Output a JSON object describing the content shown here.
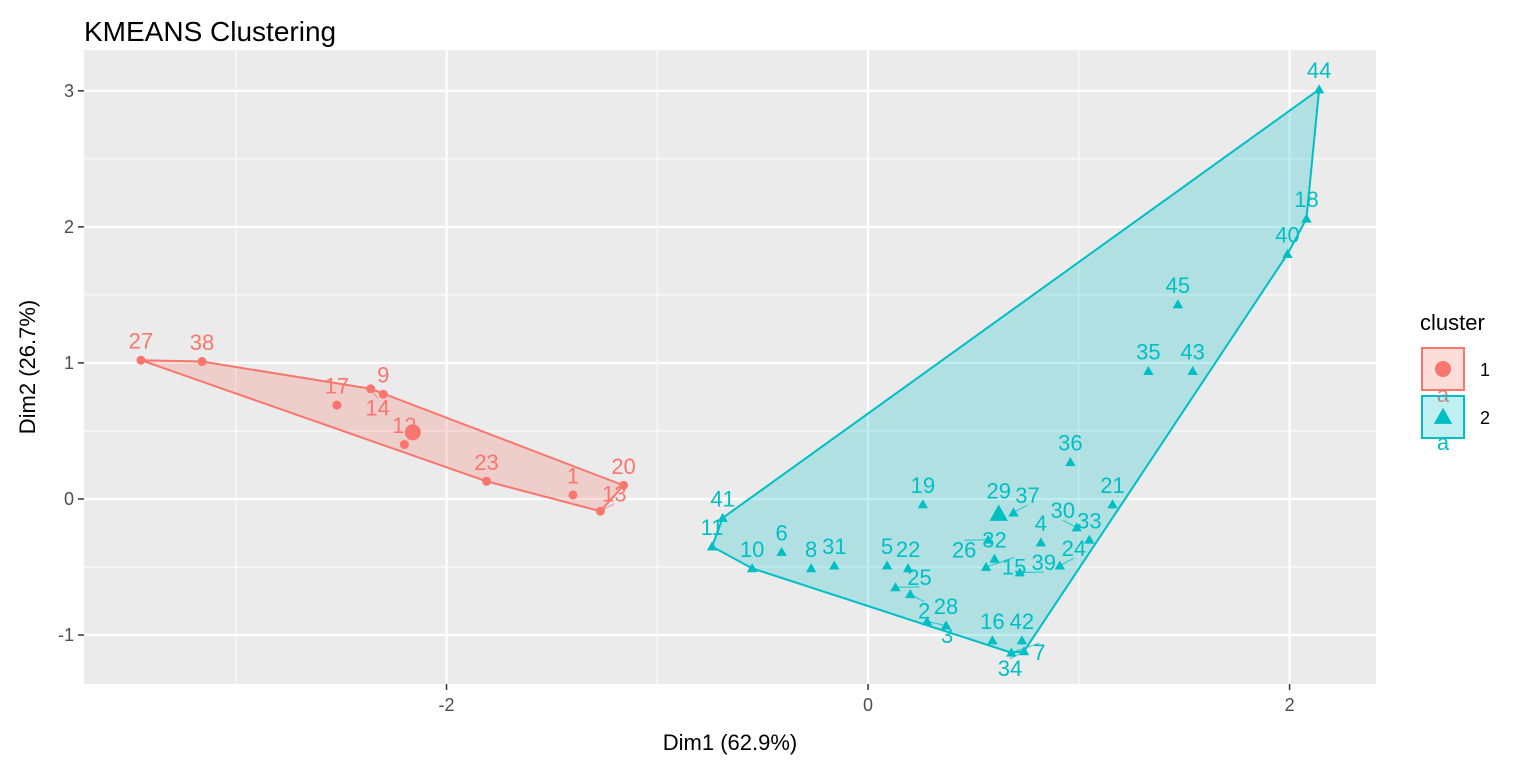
{
  "chart_data": {
    "type": "scatter",
    "title": "KMEANS Clustering",
    "xlabel": "Dim1 (62.9%)",
    "ylabel": "Dim2 (26.7%)",
    "xlim": [
      -3.72,
      2.41
    ],
    "ylim": [
      -1.36,
      3.3
    ],
    "xticks": [
      -2,
      0,
      2
    ],
    "yticks": [
      -1,
      0,
      1,
      2,
      3
    ],
    "grid": true,
    "legend": {
      "title": "cluster",
      "placement": "right",
      "entries": [
        "1",
        "2"
      ],
      "key_letter": "a"
    },
    "series": [
      {
        "name": "1",
        "color": "#F8766D",
        "shape": "circle",
        "centroid": [
          -2.16,
          0.49
        ],
        "points": [
          {
            "label": "27",
            "x": -3.45,
            "y": 1.02
          },
          {
            "label": "38",
            "x": -3.16,
            "y": 1.01
          },
          {
            "label": "17",
            "x": -2.52,
            "y": 0.69
          },
          {
            "label": "14",
            "x": -2.36,
            "y": 0.81
          },
          {
            "label": "9",
            "x": -2.3,
            "y": 0.77
          },
          {
            "label": "12",
            "x": -2.2,
            "y": 0.4
          },
          {
            "label": "23",
            "x": -1.81,
            "y": 0.13
          },
          {
            "label": "1",
            "x": -1.4,
            "y": 0.03
          },
          {
            "label": "13",
            "x": -1.27,
            "y": -0.09
          },
          {
            "label": "20",
            "x": -1.16,
            "y": 0.1
          }
        ]
      },
      {
        "name": "2",
        "color": "#00BFC4",
        "shape": "triangle",
        "centroid": [
          0.62,
          -0.11
        ],
        "points": [
          {
            "label": "41",
            "x": -0.69,
            "y": -0.14
          },
          {
            "label": "11",
            "x": -0.74,
            "y": -0.35
          },
          {
            "label": "10",
            "x": -0.55,
            "y": -0.51
          },
          {
            "label": "6",
            "x": -0.41,
            "y": -0.39
          },
          {
            "label": "8",
            "x": -0.27,
            "y": -0.51
          },
          {
            "label": "31",
            "x": -0.16,
            "y": -0.49
          },
          {
            "label": "5",
            "x": 0.09,
            "y": -0.49
          },
          {
            "label": "22",
            "x": 0.19,
            "y": -0.51
          },
          {
            "label": "25",
            "x": 0.13,
            "y": -0.65
          },
          {
            "label": "2",
            "x": 0.2,
            "y": -0.7
          },
          {
            "label": "3",
            "x": 0.28,
            "y": -0.9
          },
          {
            "label": "28",
            "x": 0.37,
            "y": -0.93
          },
          {
            "label": "19",
            "x": 0.26,
            "y": -0.04
          },
          {
            "label": "37",
            "x": 0.69,
            "y": -0.1
          },
          {
            "label": "29",
            "x": 0.62,
            "y": -0.08
          },
          {
            "label": "32",
            "x": 0.6,
            "y": -0.44
          },
          {
            "label": "26",
            "x": 0.57,
            "y": -0.3
          },
          {
            "label": "15",
            "x": 0.56,
            "y": -0.5
          },
          {
            "label": "39",
            "x": 0.72,
            "y": -0.54
          },
          {
            "label": "4",
            "x": 0.82,
            "y": -0.32
          },
          {
            "label": "24",
            "x": 0.91,
            "y": -0.49
          },
          {
            "label": "30",
            "x": 0.99,
            "y": -0.21
          },
          {
            "label": "33",
            "x": 1.05,
            "y": -0.3
          },
          {
            "label": "21",
            "x": 1.16,
            "y": -0.04
          },
          {
            "label": "16",
            "x": 0.59,
            "y": -1.04
          },
          {
            "label": "42",
            "x": 0.73,
            "y": -1.04
          },
          {
            "label": "7",
            "x": 0.68,
            "y": -1.13
          },
          {
            "label": "34",
            "x": 0.74,
            "y": -1.12
          },
          {
            "label": "36",
            "x": 0.96,
            "y": 0.27
          },
          {
            "label": "35",
            "x": 1.33,
            "y": 0.94
          },
          {
            "label": "43",
            "x": 1.54,
            "y": 0.94
          },
          {
            "label": "45",
            "x": 1.47,
            "y": 1.43
          },
          {
            "label": "40",
            "x": 1.99,
            "y": 1.8
          },
          {
            "label": "18",
            "x": 2.08,
            "y": 2.06
          },
          {
            "label": "44",
            "x": 2.14,
            "y": 3.01
          }
        ]
      }
    ]
  }
}
